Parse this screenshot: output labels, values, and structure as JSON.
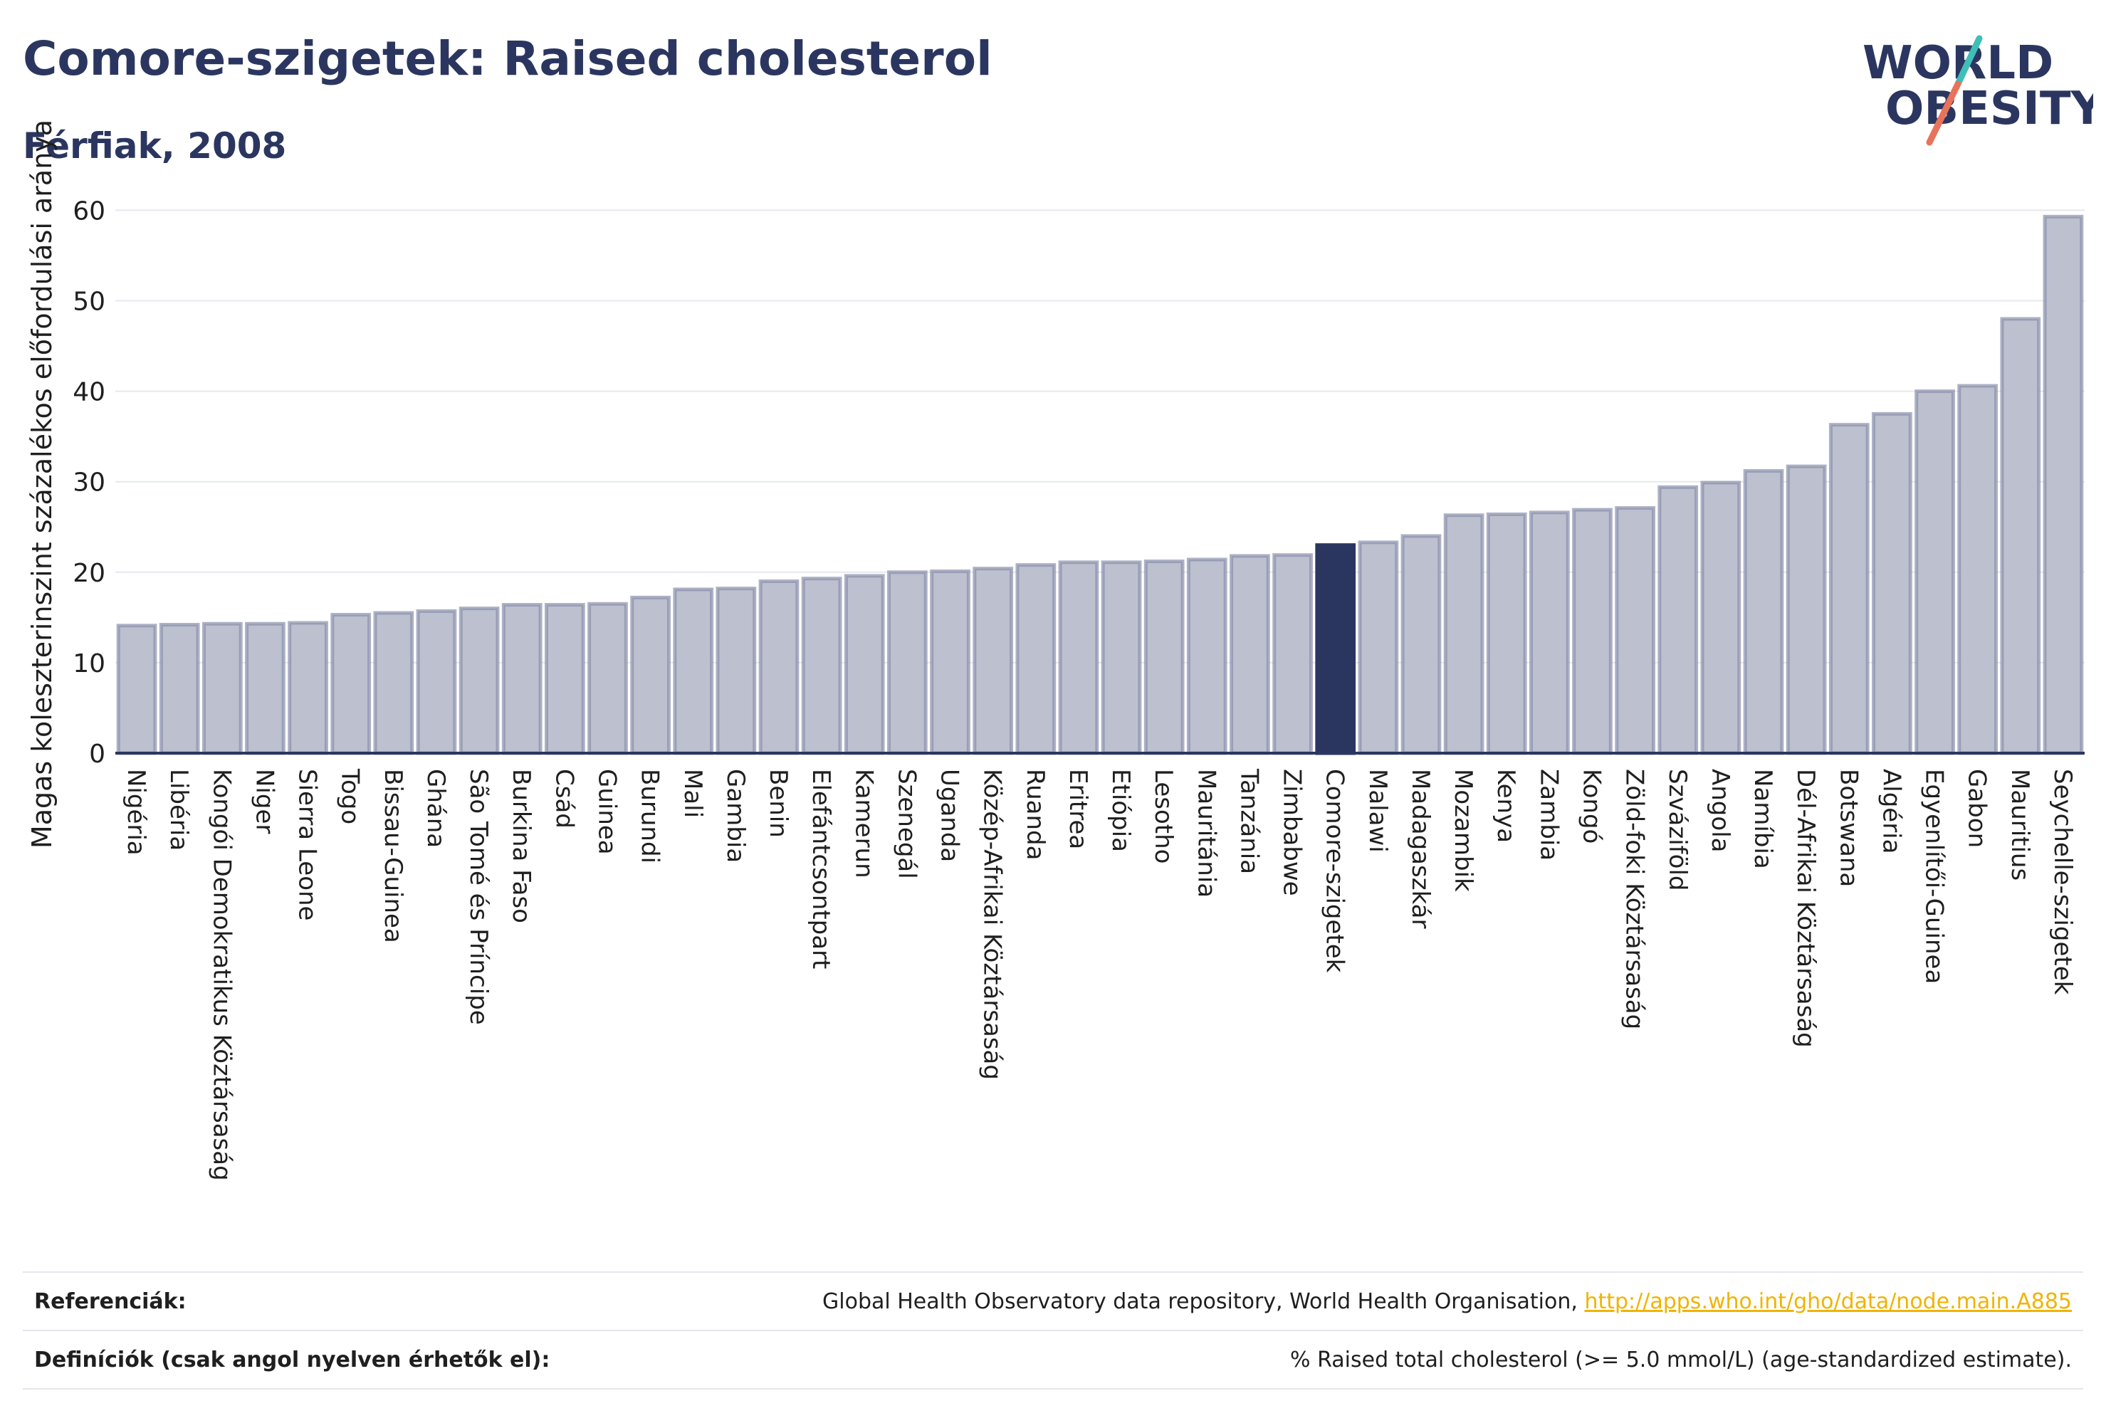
{
  "header": {
    "title": "Comore-szigetek: Raised cholesterol",
    "subtitle": "Férfiak, 2008"
  },
  "logo": {
    "line1": "WORLD",
    "line2": "OBESITY",
    "colors": {
      "text": "#2b3660",
      "slash_top": "#3fbfb8",
      "slash_bottom": "#e8735a"
    }
  },
  "chart_data": {
    "type": "bar",
    "ylabel": "Magas koleszterinszint százalékos előfordulási aránya",
    "ylim": [
      0,
      62
    ],
    "yticks": [
      0,
      10,
      20,
      30,
      40,
      50,
      60
    ],
    "grid": true,
    "highlight": "Comore-szigetek",
    "colors": {
      "bar": "#bcc0cf",
      "bar_edge": "#8a90ab",
      "highlight": "#2b3660"
    },
    "categories": [
      "Nigéria",
      "Libéria",
      "Kongói Demokratikus Köztársaság",
      "Niger",
      "Sierra Leone",
      "Togo",
      "Bissau-Guinea",
      "Ghána",
      "São Tomé és Príncipe",
      "Burkina Faso",
      "Csád",
      "Guinea",
      "Burundi",
      "Mali",
      "Gambia",
      "Benin",
      "Elefántcsontpart",
      "Kamerun",
      "Szenegál",
      "Uganda",
      "Közép-Afrikai Köztársaság",
      "Ruanda",
      "Eritrea",
      "Etiópia",
      "Lesotho",
      "Mauritánia",
      "Tanzánia",
      "Zimbabwe",
      "Comore-szigetek",
      "Malawi",
      "Madagaszkár",
      "Mozambik",
      "Kenya",
      "Zambia",
      "Kongó",
      "Zöld-foki Köztársaság",
      "Szváziföld",
      "Angola",
      "Namíbia",
      "Dél-Afrikai Köztársaság",
      "Botswana",
      "Algéria",
      "Egyenlítői-Guinea",
      "Gabon",
      "Mauritius",
      "Seychelle-szigetek"
    ],
    "values": [
      14.1,
      14.2,
      14.3,
      14.3,
      14.4,
      15.3,
      15.5,
      15.7,
      16.0,
      16.4,
      16.4,
      16.5,
      17.2,
      18.1,
      18.2,
      19.0,
      19.3,
      19.6,
      20.0,
      20.1,
      20.4,
      20.8,
      21.1,
      21.1,
      21.2,
      21.4,
      21.8,
      21.9,
      23.0,
      23.3,
      24.0,
      26.3,
      26.4,
      26.6,
      26.9,
      27.1,
      29.4,
      29.9,
      31.2,
      31.7,
      36.3,
      37.5,
      40.0,
      40.6,
      48.0,
      59.3
    ]
  },
  "footer": {
    "ref_label": "Referenciák:",
    "ref_text": "Global Health Observatory data repository, World Health Organisation, ",
    "ref_link": "http://apps.who.int/gho/data/node.main.A885",
    "def_label": "Definíciók (csak angol nyelven érhetők el):",
    "def_text": "% Raised total cholesterol (>= 5.0 mmol/L) (age-standardized estimate)."
  }
}
